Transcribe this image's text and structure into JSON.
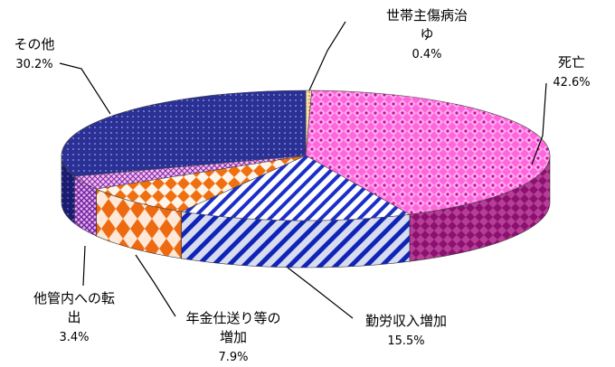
{
  "chart_data": {
    "type": "pie",
    "title": "",
    "slices": [
      {
        "key": "shishou",
        "label_lines": [
          "世帯主傷病治",
          "ゆ"
        ],
        "value": 0.4,
        "value_label": "0.4%",
        "color": "#c8a060"
      },
      {
        "key": "shibou",
        "label_lines": [
          "死亡"
        ],
        "value": 42.6,
        "value_label": "42.6%",
        "color": "#e040c0"
      },
      {
        "key": "kinrou",
        "label_lines": [
          "勤労収入増加"
        ],
        "value": 15.5,
        "value_label": "15.5%",
        "color": "#1c2ec8"
      },
      {
        "key": "nenkin",
        "label_lines": [
          "年金仕送り等の",
          "増加"
        ],
        "value": 7.9,
        "value_label": "7.9%",
        "color": "#f07010"
      },
      {
        "key": "tenshutsu",
        "label_lines": [
          "他管内への転",
          "出"
        ],
        "value": 3.4,
        "value_label": "3.4%",
        "color": "#b048c8"
      },
      {
        "key": "sonota",
        "label_lines": [
          "その他"
        ],
        "value": 30.2,
        "value_label": "30.2%",
        "color": "#2a3094"
      }
    ],
    "legend": "none",
    "style": "3d-pie, patterned fills, leader lines"
  }
}
